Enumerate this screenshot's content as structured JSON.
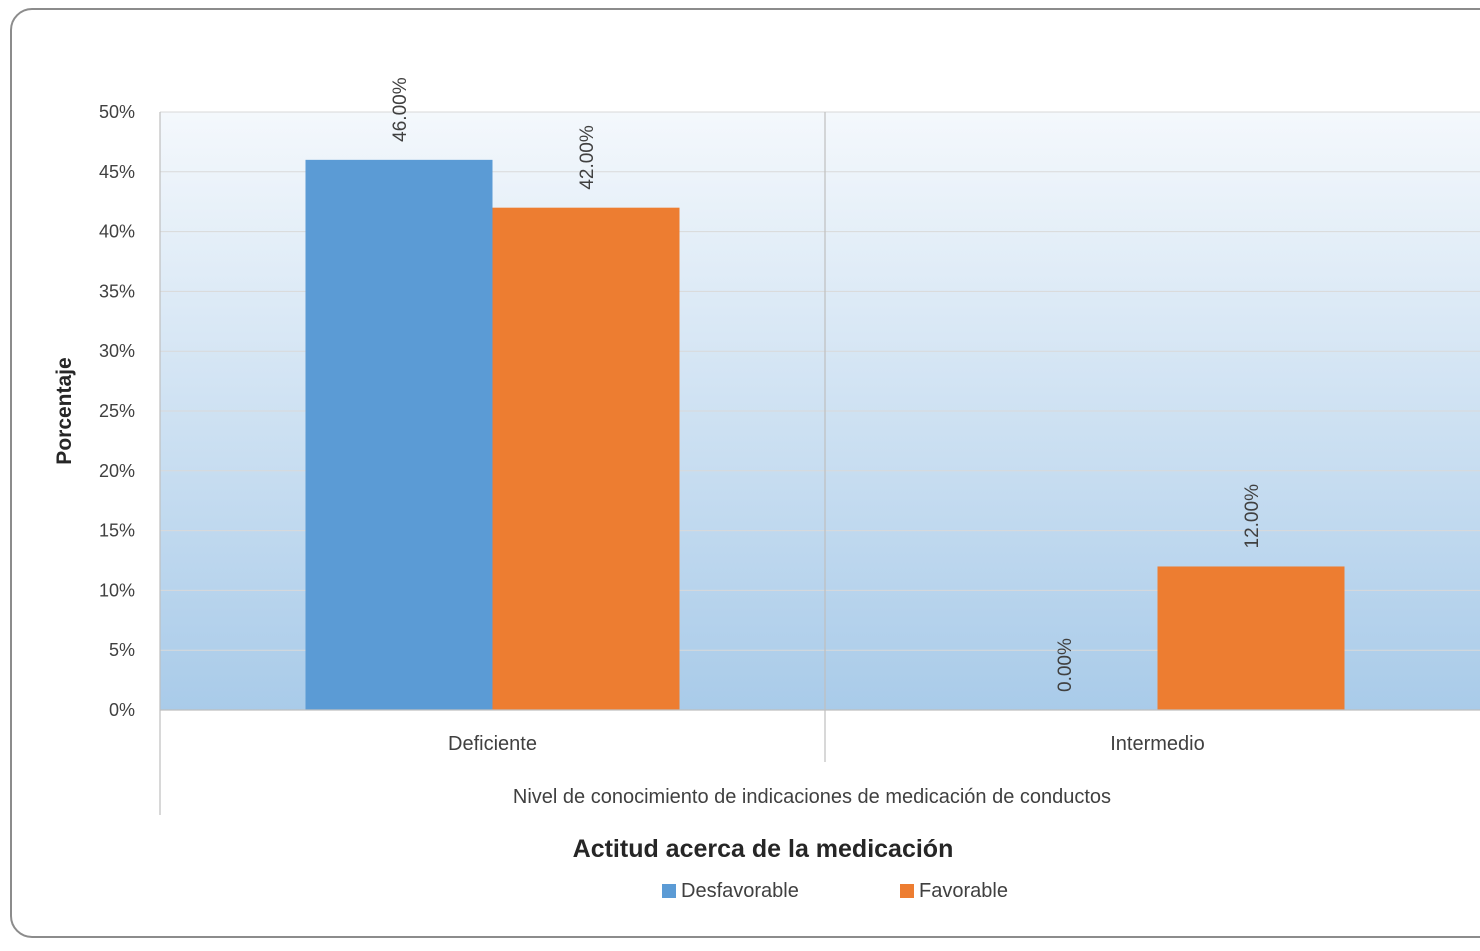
{
  "chart_data": {
    "type": "bar",
    "title": "",
    "categories": [
      "Deficiente",
      "Intermedio"
    ],
    "category_group": "Nivel de conocimiento de indicaciones de medicación de conductos",
    "series": [
      {
        "name": "Desfavorable",
        "values": [
          46.0,
          0.0
        ],
        "labels": [
          "46.00%",
          "0.00%"
        ],
        "color": "#5b9bd5"
      },
      {
        "name": "Favorable",
        "values": [
          42.0,
          12.0
        ],
        "labels": [
          "42.00%",
          "12.00%"
        ],
        "color": "#ed7d31"
      }
    ],
    "ylabel": "Porcentaje",
    "xlabel": "Actitud acerca de la medicación",
    "ylim": [
      0,
      50
    ],
    "yticks": [
      "0%",
      "5%",
      "10%",
      "15%",
      "20%",
      "25%",
      "30%",
      "35%",
      "40%",
      "45%",
      "50%"
    ],
    "grid": true,
    "legend_position": "bottom",
    "plot_background": {
      "top": "#f4f8fc",
      "bottom": "#a9cbe9"
    }
  }
}
